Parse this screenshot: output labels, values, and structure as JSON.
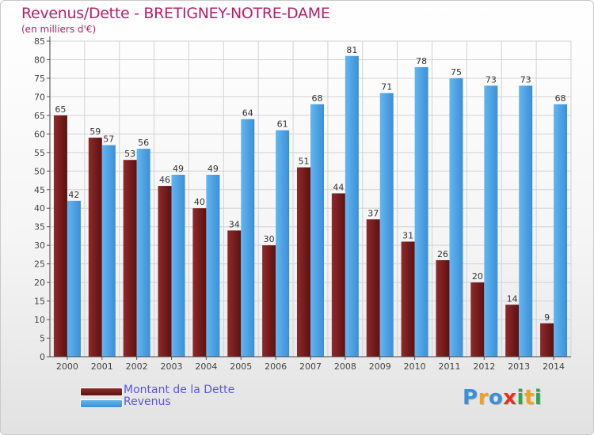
{
  "header": {
    "title": "Revenus/Dette - BRETIGNEY-NOTRE-DAME",
    "subtitle": "(en milliers d'€)"
  },
  "legend": {
    "items": [
      {
        "label": "Montant de la Dette",
        "color": "#7a1c1c"
      },
      {
        "label": "Revenus",
        "color": "#4ea6e8"
      }
    ]
  },
  "logo": {
    "letters": [
      {
        "char": "P",
        "color": "#3a8fd8"
      },
      {
        "char": "r",
        "color": "#f2a020"
      },
      {
        "char": "o",
        "color": "#3a8fd8"
      },
      {
        "char": "x",
        "color": "#e83020"
      },
      {
        "char": "i",
        "color": "#2aa84a"
      },
      {
        "char": "t",
        "color": "#f2a020"
      },
      {
        "char": "i",
        "color": "#2aa84a"
      }
    ]
  },
  "chart_data": {
    "type": "bar",
    "title": "Revenus/Dette - BRETIGNEY-NOTRE-DAME",
    "subtitle": "(en milliers d'€)",
    "categories": [
      "2000",
      "2001",
      "2002",
      "2003",
      "2004",
      "2005",
      "2006",
      "2007",
      "2008",
      "2009",
      "2010",
      "2011",
      "2012",
      "2013",
      "2014"
    ],
    "series": [
      {
        "name": "Montant de la Dette",
        "color": "#7a1c1c",
        "values": [
          65,
          59,
          53,
          46,
          40,
          34,
          30,
          51,
          44,
          37,
          31,
          26,
          20,
          14,
          9
        ]
      },
      {
        "name": "Revenus",
        "color": "#4ea6e8",
        "values": [
          42,
          57,
          56,
          49,
          49,
          64,
          61,
          68,
          81,
          71,
          78,
          75,
          73,
          73,
          68
        ]
      }
    ],
    "ylim": [
      0,
      85
    ],
    "yticks": [
      0,
      5,
      10,
      15,
      20,
      25,
      30,
      35,
      40,
      45,
      50,
      55,
      60,
      65,
      70,
      75,
      80,
      85
    ],
    "grid": true,
    "legend_position": "bottom-left",
    "data_labels": true
  }
}
